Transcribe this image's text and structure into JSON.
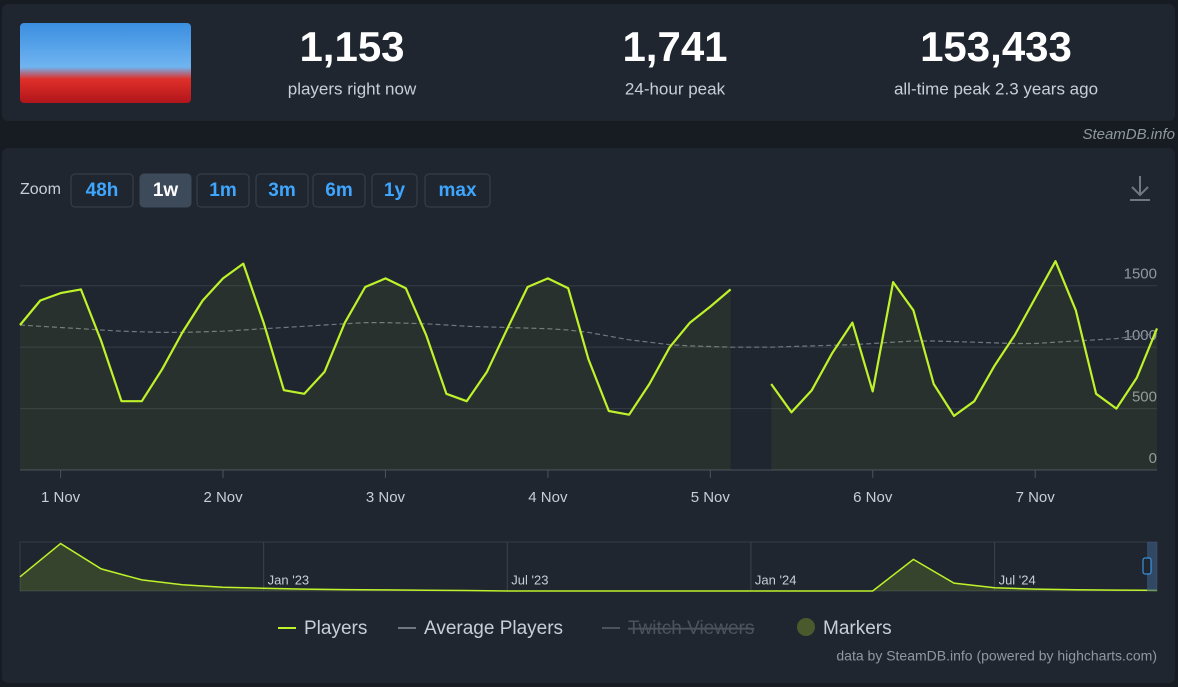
{
  "header": {
    "stats": [
      {
        "value": "1,153",
        "label": "players right now"
      },
      {
        "value": "1,741",
        "label": "24-hour peak"
      },
      {
        "value": "153,433",
        "label": "all-time peak 2.3 years ago"
      }
    ]
  },
  "watermark": "SteamDB.info",
  "zoom": {
    "label": "Zoom",
    "options": [
      "48h",
      "1w",
      "1m",
      "3m",
      "6m",
      "1y",
      "max"
    ],
    "selected": "1w"
  },
  "chart_data": [
    {
      "type": "line",
      "categories": [
        null,
        null,
        "1 Nov",
        null,
        null,
        null,
        null,
        null,
        null,
        null,
        "2 Nov",
        null,
        null,
        null,
        null,
        null,
        null,
        null,
        "3 Nov",
        null,
        null,
        null,
        null,
        null,
        null,
        null,
        "4 Nov",
        null,
        null,
        null,
        null,
        null,
        null,
        null,
        "5 Nov",
        null,
        null,
        null,
        null,
        null,
        null,
        null,
        "6 Nov",
        null,
        null,
        null,
        null,
        null,
        null,
        null,
        "7 Nov",
        null,
        null,
        null,
        null,
        null,
        null
      ],
      "series": [
        {
          "name": "Players",
          "color": "#bef22a",
          "values": [
            1180,
            1380,
            1440,
            1470,
            1050,
            560,
            560,
            820,
            1120,
            1380,
            1560,
            1680,
            1200,
            650,
            620,
            800,
            1200,
            1490,
            1560,
            1480,
            1100,
            620,
            560,
            800,
            1150,
            1490,
            1560,
            1480,
            900,
            480,
            450,
            700,
            1000,
            1200,
            1330,
            1470,
            null,
            700,
            470,
            650,
            950,
            1200,
            640,
            1530,
            1300,
            700,
            440,
            560,
            850,
            1100,
            1400,
            1700,
            1300,
            620,
            500,
            750,
            1153
          ]
        },
        {
          "name": "Average Players",
          "color": "#6f7780",
          "dashed": true,
          "values": [
            1180,
            1170,
            1160,
            1150,
            1140,
            1130,
            1125,
            1120,
            1120,
            1125,
            1130,
            1140,
            1150,
            1160,
            1170,
            1180,
            1190,
            1200,
            1200,
            1195,
            1190,
            1180,
            1170,
            1165,
            1160,
            1155,
            1150,
            1140,
            1120,
            1090,
            1060,
            1040,
            1020,
            1010,
            1005,
            1000,
            1000,
            1000,
            1005,
            1010,
            1015,
            1020,
            1030,
            1040,
            1050,
            1050,
            1045,
            1040,
            1035,
            1030,
            1030,
            1040,
            1050,
            1060,
            1070,
            1090,
            1110
          ]
        },
        {
          "name": "Twitch Viewers",
          "color": "#4b535c",
          "hidden": true
        }
      ],
      "markers": {
        "name": "Markers",
        "color": "#4a5a2c"
      },
      "ylim": [
        0,
        1970
      ],
      "yticks": [
        0,
        500,
        1000,
        1500
      ],
      "grid": true
    },
    {
      "type": "area",
      "categories": [
        null,
        null,
        null,
        null,
        null,
        null,
        "Jan '23",
        null,
        null,
        null,
        null,
        null,
        "Jul '23",
        null,
        null,
        null,
        null,
        null,
        "Jan '24",
        null,
        null,
        null,
        null,
        null,
        "Jul '24",
        null,
        null,
        null,
        null
      ],
      "values": [
        45000,
        150000,
        70000,
        35000,
        20000,
        12000,
        9000,
        6000,
        4500,
        3500,
        2500,
        1500,
        0,
        0,
        0,
        0,
        0,
        0,
        0,
        0,
        0,
        0,
        100000,
        25000,
        10000,
        6000,
        4000,
        3000,
        2000
      ],
      "color": "#bef22a",
      "ylim": [
        0,
        155000
      ]
    }
  ],
  "credit": "data by SteamDB.info (powered by highcharts.com)"
}
